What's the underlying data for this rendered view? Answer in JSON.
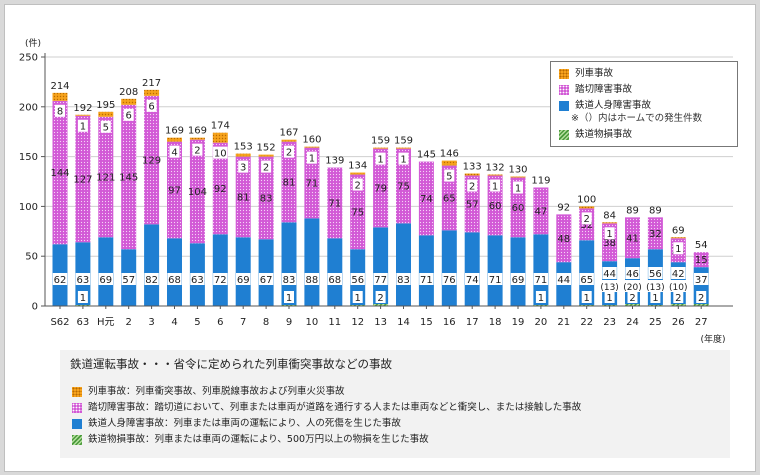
{
  "chart_data": {
    "type": "bar",
    "stacked": true,
    "y_unit": "(件)",
    "x_unit": "(年度)",
    "ylim": [
      0,
      250
    ],
    "yticks": [
      0,
      50,
      100,
      150,
      200,
      250
    ],
    "categories": [
      "S62",
      "63",
      "H元",
      "2",
      "3",
      "4",
      "5",
      "6",
      "7",
      "8",
      "9",
      "10",
      "11",
      "12",
      "13",
      "14",
      "15",
      "16",
      "17",
      "18",
      "19",
      "20",
      "21",
      "22",
      "23",
      "24",
      "25",
      "26",
      "27"
    ],
    "totals": [
      214,
      192,
      195,
      208,
      217,
      169,
      169,
      174,
      153,
      152,
      167,
      160,
      139,
      134,
      159,
      159,
      145,
      146,
      133,
      132,
      130,
      119,
      92,
      100,
      84,
      89,
      89,
      69,
      54
    ],
    "series": [
      {
        "key": "damage",
        "name": "鉄道物損事故",
        "color": "#4a9a3c",
        "values": [
          0,
          1,
          0,
          0,
          0,
          0,
          0,
          0,
          0,
          0,
          1,
          0,
          0,
          1,
          2,
          0,
          0,
          0,
          0,
          0,
          0,
          1,
          0,
          1,
          1,
          2,
          1,
          2,
          2
        ]
      },
      {
        "key": "injury",
        "name": "鉄道人身障害事故",
        "color": "#1f7fd2",
        "values": [
          62,
          63,
          69,
          57,
          82,
          68,
          63,
          72,
          69,
          67,
          83,
          88,
          68,
          56,
          77,
          83,
          71,
          76,
          74,
          71,
          69,
          71,
          44,
          65,
          44,
          46,
          56,
          42,
          37
        ]
      },
      {
        "key": "crossing",
        "name": "踏切障害事故",
        "color": "#d25ad6",
        "values": [
          144,
          127,
          121,
          145,
          129,
          97,
          104,
          92,
          81,
          83,
          81,
          71,
          71,
          75,
          79,
          75,
          74,
          65,
          57,
          60,
          60,
          47,
          48,
          32,
          38,
          41,
          32,
          24,
          15
        ]
      },
      {
        "key": "collision",
        "name": "列車事故",
        "color": "#f7a31c",
        "values": [
          8,
          1,
          5,
          6,
          6,
          4,
          2,
          10,
          3,
          2,
          2,
          1,
          0,
          2,
          1,
          1,
          0,
          5,
          2,
          1,
          1,
          0,
          0,
          2,
          1,
          0,
          0,
          1,
          0
        ]
      }
    ],
    "label_shown": {
      "damage": [
        false,
        true,
        false,
        false,
        false,
        false,
        false,
        false,
        false,
        false,
        true,
        false,
        false,
        true,
        true,
        false,
        false,
        false,
        false,
        false,
        false,
        true,
        false,
        true,
        true,
        true,
        true,
        true,
        true
      ],
      "injury": [
        true,
        true,
        true,
        true,
        true,
        true,
        true,
        true,
        true,
        true,
        true,
        true,
        true,
        true,
        true,
        true,
        true,
        true,
        true,
        true,
        true,
        true,
        true,
        true,
        true,
        true,
        true,
        true,
        true
      ],
      "crossing": [
        true,
        true,
        true,
        true,
        true,
        true,
        true,
        true,
        true,
        true,
        true,
        true,
        true,
        true,
        true,
        true,
        true,
        true,
        true,
        true,
        true,
        true,
        true,
        true,
        true,
        true,
        true,
        true,
        true
      ],
      "collision": [
        true,
        true,
        true,
        true,
        true,
        true,
        true,
        true,
        true,
        true,
        true,
        true,
        false,
        true,
        true,
        true,
        false,
        true,
        true,
        true,
        true,
        false,
        false,
        true,
        true,
        false,
        false,
        true,
        false
      ]
    },
    "platform_counts": {
      "24": "(13)",
      "25": "(20)",
      "26": "(13)",
      "27": "(10)"
    }
  },
  "legend": {
    "items": [
      {
        "label": "列車事故",
        "color": "#f7a31c"
      },
      {
        "label": "踏切障害事故",
        "color": "#d25ad6"
      },
      {
        "label": "鉄道人身障害事故",
        "color": "#1f7fd2"
      },
      {
        "label": "鉄道物損事故",
        "color": "#4a9a3c"
      }
    ],
    "note": "※（）内はホームでの発生件数"
  },
  "description": {
    "title": "鉄道運転事故・・・省令に定められた列車衝突事故などの事故",
    "items": [
      "列車事故：列車衝突事故、列車脱線事故および列車火災事故",
      "踏切障害事故：踏切道において、列車または車両が道路を通行する人または車両などと衝突し、または接触した事故",
      "鉄道人身障害事故：列車または車両の運転により、人の死傷を生じた事故",
      "鉄道物損事故：列車または車両の運転により、500万円以上の物損を生じた事故"
    ]
  }
}
